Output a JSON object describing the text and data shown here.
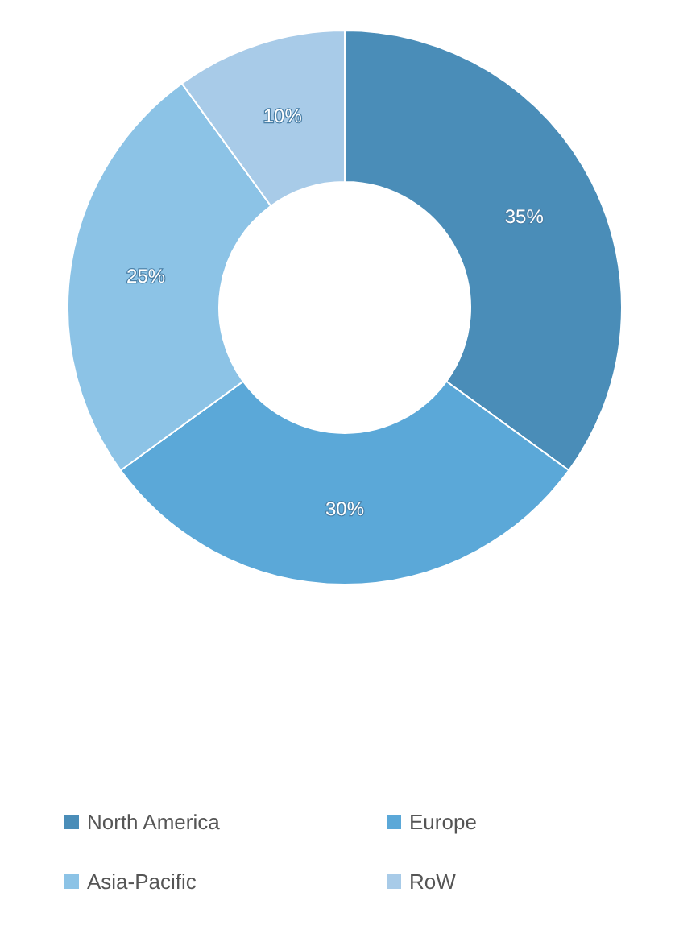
{
  "chart_data": {
    "type": "donut",
    "categories": [
      "North America",
      "Europe",
      "Asia-Pacific",
      "RoW"
    ],
    "values": [
      35,
      30,
      25,
      10
    ],
    "colors": [
      "#4a8db8",
      "#5ba8d8",
      "#8cc3e6",
      "#a8cbe8"
    ],
    "value_labels": [
      "35%",
      "30%",
      "25%",
      "10%"
    ],
    "legend": "bottom"
  }
}
